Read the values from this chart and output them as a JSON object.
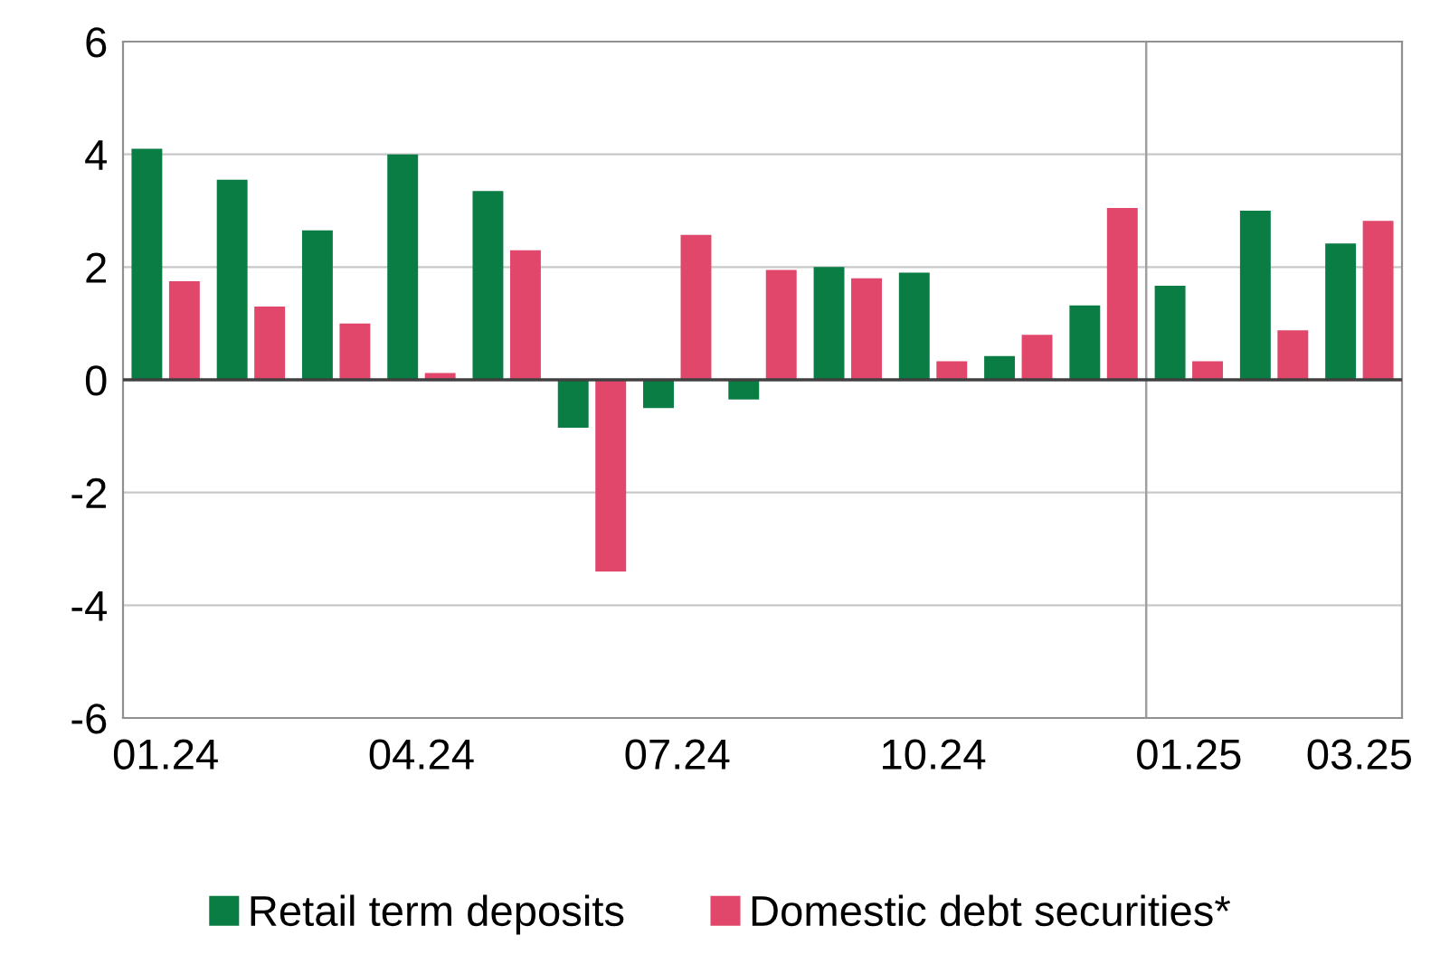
{
  "chart_data": {
    "type": "bar",
    "categories": [
      "01.24",
      null,
      null,
      "04.24",
      null,
      null,
      "07.24",
      null,
      null,
      "10.24",
      null,
      null,
      "01.25",
      null,
      "03.25"
    ],
    "series": [
      {
        "name": "Retail term deposits",
        "color": "#0a7d44",
        "values": [
          4.1,
          3.55,
          2.65,
          4.0,
          3.35,
          -0.85,
          -0.5,
          -0.35,
          2.0,
          1.9,
          0.42,
          1.32,
          1.67,
          3.0,
          2.42
        ]
      },
      {
        "name": "Domestic debt securities*",
        "color": "#e0476a",
        "values": [
          1.75,
          1.3,
          1.0,
          0.12,
          2.3,
          -3.4,
          2.57,
          1.95,
          1.8,
          0.33,
          0.8,
          3.05,
          0.33,
          0.88,
          2.82
        ]
      }
    ],
    "ylim": [
      -6,
      6
    ],
    "yticks": [
      -6,
      -4,
      -2,
      0,
      2,
      4,
      6
    ],
    "ref_lines": [
      {
        "axis": "x",
        "value": "01.25",
        "color": "#a0a0a0"
      }
    ],
    "grid": "y",
    "legend": "bottom"
  }
}
